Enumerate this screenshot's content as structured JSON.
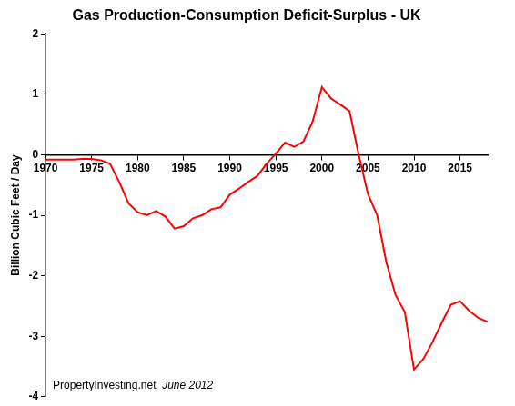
{
  "chart_data": {
    "type": "line",
    "title": "Gas Production-Consumption Deficit-Surplus - UK",
    "y_label": "Billion Cubic Feet / Day",
    "annotations": [
      "PropertyInvesting.net",
      "June 2012"
    ],
    "x": [
      1970,
      1971,
      1972,
      1973,
      1974,
      1975,
      1976,
      1977,
      1978,
      1979,
      1980,
      1981,
      1982,
      1983,
      1984,
      1985,
      1986,
      1987,
      1988,
      1989,
      1990,
      1991,
      1992,
      1993,
      1994,
      1995,
      1996,
      1997,
      1998,
      1999,
      2000,
      2001,
      2002,
      2003,
      2004,
      2005,
      2006,
      2007,
      2008,
      2009,
      2010,
      2011,
      2012,
      2013,
      2014,
      2015,
      2016,
      2017,
      2018
    ],
    "values": [
      -0.08,
      -0.08,
      -0.08,
      -0.08,
      -0.07,
      -0.07,
      -0.09,
      -0.15,
      -0.45,
      -0.8,
      -0.95,
      -1.0,
      -0.93,
      -1.02,
      -1.22,
      -1.18,
      -1.05,
      -1.0,
      -0.9,
      -0.87,
      -0.66,
      -0.56,
      -0.45,
      -0.35,
      -0.15,
      0.02,
      0.2,
      0.13,
      0.22,
      0.55,
      1.12,
      0.93,
      0.83,
      0.72,
      0.0,
      -0.65,
      -1.0,
      -1.78,
      -2.32,
      -2.6,
      -3.55,
      -3.38,
      -3.1,
      -2.78,
      -2.48,
      -2.42,
      -2.58,
      -2.7,
      -2.76
    ],
    "color": "#ff0000",
    "xlim": [
      1970,
      2018
    ],
    "xticks": [
      1970,
      1975,
      1980,
      1985,
      1990,
      1995,
      2000,
      2005,
      2010,
      2015
    ],
    "ylim": [
      -4,
      2
    ],
    "yticks": [
      -4,
      -3,
      -2,
      -1,
      0,
      1,
      2
    ],
    "grid": false
  }
}
